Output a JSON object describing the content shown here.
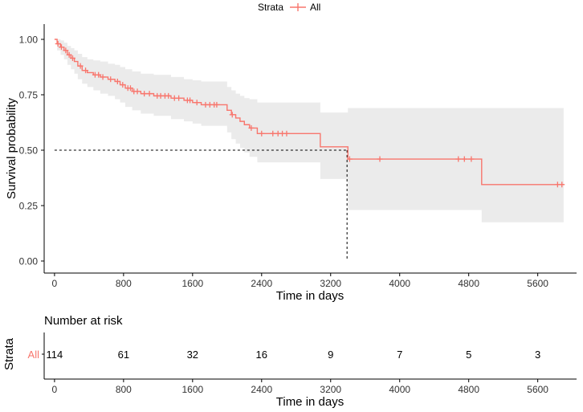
{
  "legend": {
    "title": "Strata",
    "entries": [
      {
        "label": "All",
        "color": "#F8766D"
      }
    ]
  },
  "chart_data": {
    "type": "line",
    "subtype": "kaplan-meier-survival",
    "xlabel": "Time in days",
    "ylabel": "Survival probability",
    "xlim": [
      -120,
      6050
    ],
    "ylim": [
      0,
      1
    ],
    "x_ticks": [
      0,
      800,
      1600,
      2400,
      3200,
      4000,
      4800,
      5600
    ],
    "y_ticks": [
      0,
      0.25,
      0.5,
      0.75,
      1
    ],
    "y_tick_labels": [
      "0.00",
      "0.25",
      "0.50",
      "0.75",
      "1.00"
    ],
    "grid": false,
    "legend_position": "top",
    "line_color": "#F8766D",
    "band_color": "#EBEBEB",
    "median_survival": {
      "x": 3390,
      "y": 0.5
    },
    "series": [
      {
        "name": "All",
        "step": {
          "x": [
            0,
            30,
            70,
            110,
            150,
            190,
            230,
            270,
            320,
            380,
            450,
            530,
            620,
            700,
            760,
            820,
            900,
            1000,
            1150,
            1350,
            1500,
            1600,
            1700,
            1900,
            2000,
            2050,
            2100,
            2150,
            2200,
            2260,
            2350,
            2700,
            3080,
            3400,
            4950,
            5900
          ],
          "y": [
            1.0,
            0.98,
            0.965,
            0.95,
            0.93,
            0.915,
            0.9,
            0.88,
            0.86,
            0.85,
            0.84,
            0.83,
            0.82,
            0.81,
            0.795,
            0.78,
            0.765,
            0.755,
            0.745,
            0.735,
            0.725,
            0.715,
            0.705,
            0.705,
            0.68,
            0.66,
            0.645,
            0.63,
            0.615,
            0.6,
            0.575,
            0.575,
            0.515,
            0.46,
            0.345,
            0.345
          ]
        },
        "ci_lower": [
          1.0,
          0.95,
          0.93,
          0.91,
          0.885,
          0.865,
          0.845,
          0.82,
          0.8,
          0.785,
          0.77,
          0.755,
          0.745,
          0.73,
          0.715,
          0.695,
          0.68,
          0.665,
          0.655,
          0.64,
          0.63,
          0.62,
          0.61,
          0.61,
          0.58,
          0.55,
          0.53,
          0.51,
          0.49,
          0.47,
          0.445,
          0.445,
          0.37,
          0.23,
          0.175,
          0.175
        ],
        "ci_upper": [
          1.0,
          1.0,
          0.995,
          0.985,
          0.97,
          0.96,
          0.95,
          0.935,
          0.92,
          0.91,
          0.905,
          0.9,
          0.89,
          0.885,
          0.875,
          0.865,
          0.855,
          0.845,
          0.84,
          0.83,
          0.82,
          0.815,
          0.81,
          0.81,
          0.785,
          0.77,
          0.755,
          0.745,
          0.735,
          0.73,
          0.715,
          0.715,
          0.67,
          0.69,
          0.69,
          0.69
        ],
        "censored": [
          {
            "x": 40,
            "y": 0.98
          },
          {
            "x": 80,
            "y": 0.965
          },
          {
            "x": 130,
            "y": 0.95
          },
          {
            "x": 170,
            "y": 0.93
          },
          {
            "x": 210,
            "y": 0.915
          },
          {
            "x": 300,
            "y": 0.88
          },
          {
            "x": 360,
            "y": 0.86
          },
          {
            "x": 470,
            "y": 0.84
          },
          {
            "x": 510,
            "y": 0.84
          },
          {
            "x": 560,
            "y": 0.83
          },
          {
            "x": 650,
            "y": 0.82
          },
          {
            "x": 730,
            "y": 0.81
          },
          {
            "x": 790,
            "y": 0.795
          },
          {
            "x": 850,
            "y": 0.78
          },
          {
            "x": 880,
            "y": 0.78
          },
          {
            "x": 920,
            "y": 0.765
          },
          {
            "x": 960,
            "y": 0.765
          },
          {
            "x": 1040,
            "y": 0.755
          },
          {
            "x": 1100,
            "y": 0.755
          },
          {
            "x": 1190,
            "y": 0.745
          },
          {
            "x": 1230,
            "y": 0.745
          },
          {
            "x": 1280,
            "y": 0.745
          },
          {
            "x": 1320,
            "y": 0.745
          },
          {
            "x": 1390,
            "y": 0.735
          },
          {
            "x": 1440,
            "y": 0.735
          },
          {
            "x": 1540,
            "y": 0.725
          },
          {
            "x": 1570,
            "y": 0.725
          },
          {
            "x": 1650,
            "y": 0.715
          },
          {
            "x": 1750,
            "y": 0.705
          },
          {
            "x": 1800,
            "y": 0.705
          },
          {
            "x": 1850,
            "y": 0.705
          },
          {
            "x": 1880,
            "y": 0.705
          },
          {
            "x": 2060,
            "y": 0.66
          },
          {
            "x": 2280,
            "y": 0.6
          },
          {
            "x": 2400,
            "y": 0.575
          },
          {
            "x": 2530,
            "y": 0.575
          },
          {
            "x": 2590,
            "y": 0.575
          },
          {
            "x": 2640,
            "y": 0.575
          },
          {
            "x": 2690,
            "y": 0.575
          },
          {
            "x": 3420,
            "y": 0.46
          },
          {
            "x": 3770,
            "y": 0.46
          },
          {
            "x": 4680,
            "y": 0.46
          },
          {
            "x": 4750,
            "y": 0.46
          },
          {
            "x": 4830,
            "y": 0.46
          },
          {
            "x": 5830,
            "y": 0.345
          },
          {
            "x": 5880,
            "y": 0.345
          }
        ]
      }
    ]
  },
  "risk_table": {
    "title": "Number at risk",
    "ylabel": "Strata",
    "xlabel": "Time in days",
    "row_label": "All",
    "row_color": "#F8766D",
    "times": [
      0,
      800,
      1600,
      2400,
      3200,
      4000,
      4800,
      5600
    ],
    "counts": [
      114,
      61,
      32,
      16,
      9,
      7,
      5,
      3
    ]
  }
}
